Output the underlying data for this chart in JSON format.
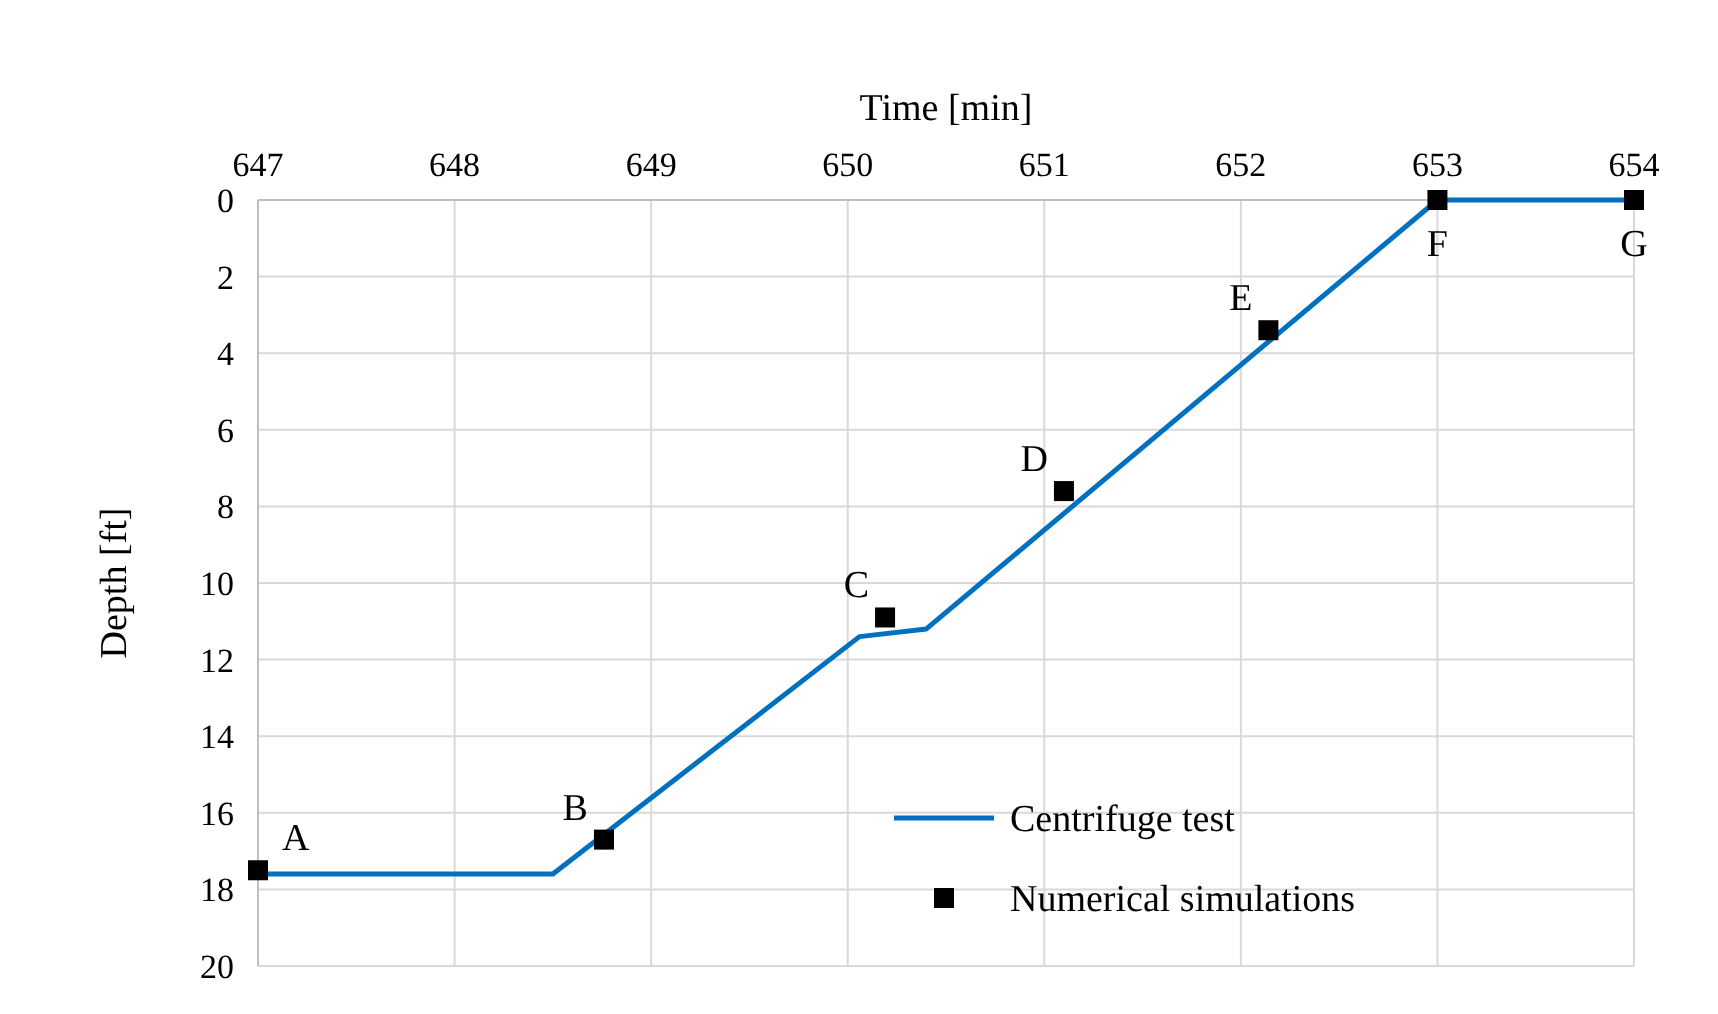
{
  "chart_data": {
    "type": "line",
    "xlabel": "Time  [min]",
    "ylabel": "Depth [ft]",
    "xlim": [
      647,
      654
    ],
    "xticks": [
      647,
      648,
      649,
      650,
      651,
      652,
      653,
      654
    ],
    "ylim": [
      20,
      0
    ],
    "yticks": [
      0,
      2,
      4,
      6,
      8,
      10,
      12,
      14,
      16,
      18,
      20
    ],
    "grid": true,
    "legend": "bottom right",
    "series": [
      {
        "name": "Centrifuge test",
        "color": "#0070c0",
        "marker": "none",
        "x": [
          647,
          648.5,
          650.06,
          650.4,
          653,
          654
        ],
        "values": [
          17.6,
          17.6,
          11.4,
          11.2,
          0,
          0
        ]
      },
      {
        "name": "Numerical simulations",
        "type": "scatter",
        "color": "#000000",
        "marker": "square",
        "x": [
          647,
          648.76,
          650.19,
          651.1,
          652.14,
          653,
          654
        ],
        "values": [
          17.5,
          16.7,
          10.9,
          7.6,
          3.4,
          0,
          0
        ]
      }
    ],
    "annotations": [
      {
        "text": "A",
        "x": 647,
        "y": 17.5
      },
      {
        "text": "B",
        "x": 648.76,
        "y": 16.7
      },
      {
        "text": "C",
        "x": 650.19,
        "y": 10.9
      },
      {
        "text": "D",
        "x": 651.1,
        "y": 7.6
      },
      {
        "text": "E",
        "x": 652.14,
        "y": 3.4
      },
      {
        "text": "F",
        "x": 653,
        "y": 0
      },
      {
        "text": "G",
        "x": 654,
        "y": 0
      }
    ]
  }
}
